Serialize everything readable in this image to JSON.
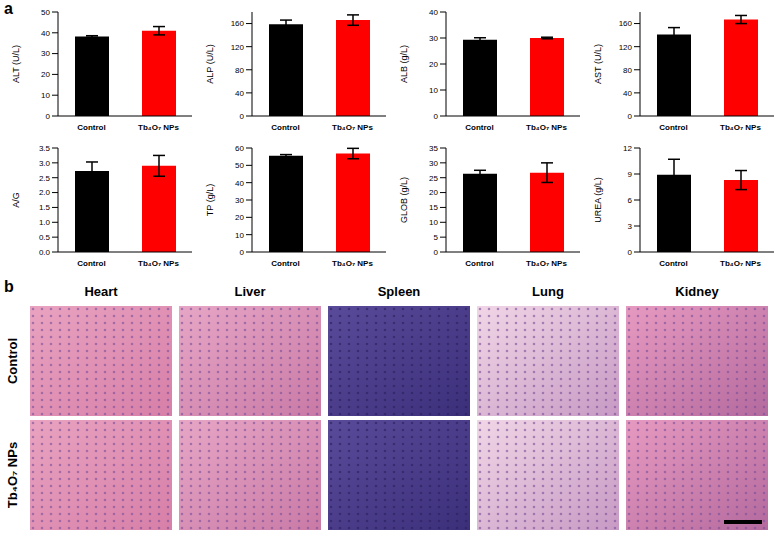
{
  "panel_labels": [
    "a",
    "b"
  ],
  "chart_data": [
    {
      "type": "bar",
      "y_label": "ALT (U/L)",
      "categories": [
        "Control",
        "Tb₄O₇ NPs"
      ],
      "values": [
        38.2,
        41
      ],
      "errors": [
        0.4,
        2
      ],
      "colors": [
        "#000000",
        "#ff0000"
      ],
      "ylim": [
        0,
        50
      ],
      "yticks": [
        0,
        10,
        20,
        30,
        40,
        50
      ]
    },
    {
      "type": "bar",
      "y_label": "ALP (U/L)",
      "categories": [
        "Control",
        "Tb₄O₇ NPs"
      ],
      "values": [
        159,
        166
      ],
      "errors": [
        7,
        9
      ],
      "colors": [
        "#000000",
        "#ff0000"
      ],
      "ylim": [
        0,
        180
      ],
      "yticks": [
        0,
        40,
        80,
        120,
        160
      ]
    },
    {
      "type": "bar",
      "y_label": "ALB (g/L)",
      "categories": [
        "Control",
        "Tb₄O₇ NPs"
      ],
      "values": [
        29.3,
        30
      ],
      "errors": [
        0.8,
        0.3
      ],
      "colors": [
        "#000000",
        "#ff0000"
      ],
      "ylim": [
        0,
        40
      ],
      "yticks": [
        0,
        10,
        20,
        30,
        40
      ]
    },
    {
      "type": "bar",
      "y_label": "AST (U/L)",
      "categories": [
        "Control",
        "Tb₄O₇ NPs"
      ],
      "values": [
        141,
        167
      ],
      "errors": [
        12,
        7
      ],
      "colors": [
        "#000000",
        "#ff0000"
      ],
      "ylim": [
        0,
        180
      ],
      "yticks": [
        0,
        40,
        80,
        120,
        160
      ]
    },
    {
      "type": "bar",
      "y_label": "A/G",
      "categories": [
        "Control",
        "Tb₄O₇ NPs"
      ],
      "values": [
        2.73,
        2.9
      ],
      "errors": [
        0.3,
        0.35
      ],
      "colors": [
        "#000000",
        "#ff0000"
      ],
      "ylim": [
        0,
        3.5
      ],
      "yticks": [
        {
          "value": 0,
          "label": "0.0"
        },
        {
          "value": 0.5,
          "label": "0.5"
        },
        {
          "value": 1,
          "label": "1.0"
        },
        {
          "value": 1.5,
          "label": "1.5"
        },
        {
          "value": 2,
          "label": "2.0"
        },
        {
          "value": 2.5,
          "label": "2.5"
        },
        {
          "value": 3,
          "label": "3.0"
        },
        {
          "value": 3.5,
          "label": "3.5"
        }
      ]
    },
    {
      "type": "bar",
      "y_label": "TP (g/L)",
      "categories": [
        "Control",
        "Tb₄O₇ NPs"
      ],
      "values": [
        55.5,
        56.8
      ],
      "errors": [
        0.7,
        3
      ],
      "colors": [
        "#000000",
        "#ff0000"
      ],
      "ylim": [
        0,
        60
      ],
      "yticks": [
        0,
        10,
        20,
        30,
        40,
        50,
        60
      ]
    },
    {
      "type": "bar",
      "y_label": "GLOB (g/L)",
      "categories": [
        "Control",
        "Tb₄O₇ NPs"
      ],
      "values": [
        26.3,
        26.7
      ],
      "errors": [
        1.2,
        3.3
      ],
      "colors": [
        "#000000",
        "#ff0000"
      ],
      "ylim": [
        0,
        35
      ],
      "yticks": [
        0,
        5,
        10,
        15,
        20,
        25,
        30,
        35
      ]
    },
    {
      "type": "bar",
      "y_label": "UREA (g/L)",
      "categories": [
        "Control",
        "Tb₄O₇ NPs"
      ],
      "values": [
        8.9,
        8.3
      ],
      "errors": [
        1.8,
        1.1
      ],
      "colors": [
        "#000000",
        "#ff0000"
      ],
      "ylim": [
        0,
        12
      ],
      "yticks": [
        0,
        3,
        6,
        9,
        12
      ]
    }
  ],
  "histology": {
    "columns": [
      "Heart",
      "Liver",
      "Spleen",
      "Lung",
      "Kidney"
    ],
    "rows": [
      "Control",
      "Tb₄O₇ NPs"
    ]
  }
}
